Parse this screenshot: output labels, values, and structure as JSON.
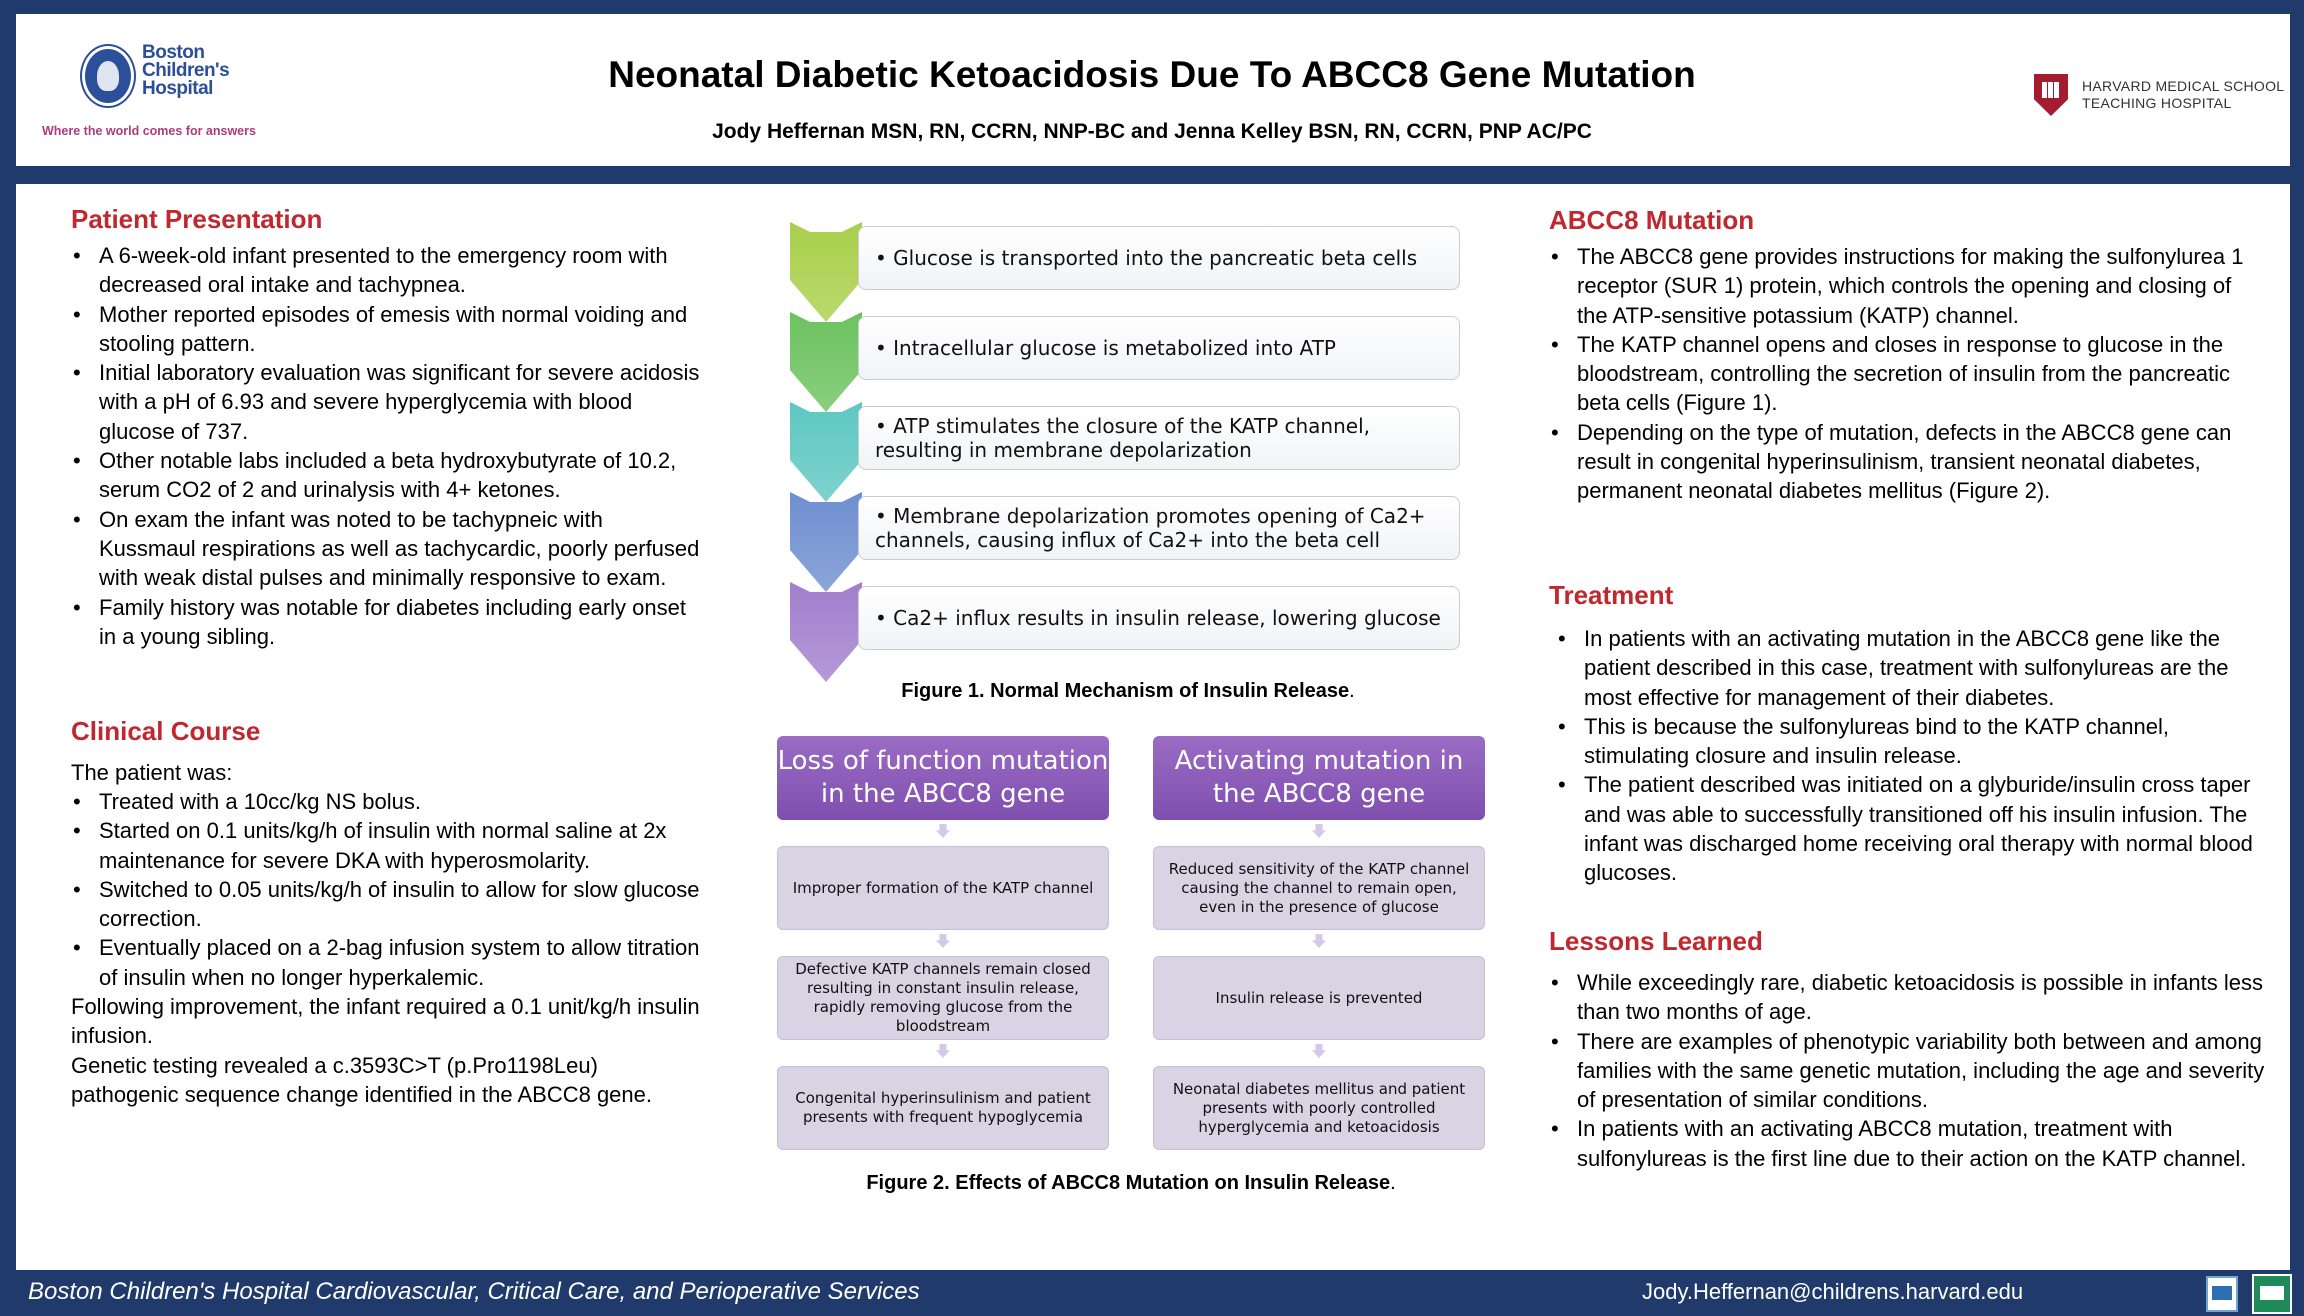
{
  "header": {
    "title": "Neonatal Diabetic Ketoacidosis Due To ABCC8 Gene Mutation",
    "authors": "Jody Heffernan MSN, RN, CCRN, NNP-BC and Jenna Kelley BSN, RN, CCRN, PNP AC/PC",
    "left_logo": {
      "name_line1": "Boston",
      "name_line2": "Children's",
      "name_line3": "Hospital",
      "tagline": "Where the world comes for answers"
    },
    "right_logo": {
      "line1": "HARVARD MEDICAL SCHOOL",
      "line2": "TEACHING HOSPITAL"
    }
  },
  "patient_presentation": {
    "title": "Patient Presentation",
    "items": [
      "A 6-week-old infant presented to the emergency room with decreased oral intake and tachypnea.",
      "Mother reported episodes of emesis with normal voiding and stooling pattern.",
      "Initial laboratory evaluation was significant for severe acidosis with a pH of 6.93 and severe hyperglycemia with blood glucose of 737.",
      "Other notable labs included a beta hydroxybutyrate of 10.2, serum CO2 of 2 and urinalysis with 4+ ketones.",
      "On exam the infant was noted to be tachypneic with Kussmaul respirations as well as tachycardic, poorly perfused with weak distal pulses and minimally responsive to exam.",
      "Family history was notable for diabetes including early onset in a young sibling."
    ]
  },
  "clinical_course": {
    "title": "Clinical Course",
    "intro": "The patient was:",
    "items": [
      "Treated with a 10cc/kg NS bolus.",
      "Started on 0.1 units/kg/h of insulin with normal saline at 2x maintenance for severe DKA with hyperosmolarity.",
      "Switched to 0.05 units/kg/h of insulin to allow for slow glucose correction.",
      "Eventually placed on a 2-bag infusion system to allow titration of insulin when no longer hyperkalemic."
    ],
    "after1": "Following improvement, the infant required a 0.1 unit/kg/h insulin infusion.",
    "after2": "Genetic testing revealed a c.3593C>T (p.Pro1198Leu) pathogenic sequence change identified in the ABCC8 gene."
  },
  "figure1": {
    "steps": [
      {
        "text": "• Glucose is transported into the pancreatic beta cells",
        "color": "#a9cf4a"
      },
      {
        "text": "• Intracellular glucose is metabolized into ATP",
        "color": "#6cc25f"
      },
      {
        "text": "• ATP stimulates the closure of the KATP channel, resulting in membrane depolarization",
        "color": "#5ec7c2"
      },
      {
        "text": "• Membrane depolarization promotes opening of Ca2+ channels, causing influx of Ca2+ into the beta cell",
        "color": "#6f8fd0"
      },
      {
        "text": "• Ca2+ influx results in insulin release, lowering glucose",
        "color": "#a27fcd"
      }
    ],
    "caption": "Figure 1. Normal Mechanism of Insulin Release",
    "caption_end": "."
  },
  "figure2": {
    "left": {
      "head": "Loss of function mutation in the ABCC8 gene",
      "boxes": [
        "Improper formation of the KATP channel",
        "Defective KATP channels remain closed resulting in constant insulin release, rapidly removing glucose from the bloodstream",
        "Congenital hyperinsulinism and patient presents with frequent hypoglycemia"
      ]
    },
    "right": {
      "head": "Activating mutation in the ABCC8 gene",
      "boxes": [
        "Reduced sensitivity of the KATP channel causing the channel  to remain open, even in the presence of glucose",
        "Insulin release is prevented",
        "Neonatal diabetes mellitus and patient presents with poorly controlled hyperglycemia and ketoacidosis"
      ]
    },
    "caption": "Figure 2. Effects of ABCC8 Mutation on Insulin Release",
    "caption_end": "."
  },
  "abcc8_mutation": {
    "title": "ABCC8 Mutation",
    "items": [
      "The ABCC8 gene provides instructions for making the sulfonylurea 1 receptor (SUR 1) protein, which controls the opening and closing of the ATP-sensitive potassium (KATP) channel.",
      "The KATP channel opens and closes in response to glucose in the bloodstream, controlling the secretion of insulin from the pancreatic beta cells (Figure 1).",
      "Depending on the type of mutation, defects in the ABCC8 gene can result in congenital hyperinsulinism, transient neonatal diabetes, permanent neonatal diabetes mellitus (Figure 2)."
    ]
  },
  "treatment": {
    "title": "Treatment",
    "items": [
      "In patients with an activating mutation in the ABCC8 gene like the patient described in this case, treatment with sulfonylureas are the most effective for management of their diabetes.",
      "This is because the sulfonylureas bind to the KATP channel, stimulating closure and insulin release.",
      "The patient described was initiated on a glyburide/insulin cross taper and was able to successfully transitioned off his insulin infusion. The infant was discharged home receiving oral therapy with normal blood glucoses."
    ]
  },
  "lessons": {
    "title": "Lessons Learned",
    "items": [
      "While exceedingly rare, diabetic ketoacidosis is possible in infants less than two months of age.",
      "There are examples of phenotypic variability both between and among families with the same genetic mutation, including the age and severity of presentation of similar conditions.",
      "In patients with an activating ABCC8 mutation, treatment with sulfonylureas is the first line due to their action on the KATP channel."
    ]
  },
  "footer": {
    "left": "Boston Children's Hospital Cardiovascular, Critical Care, and Perioperative Services",
    "right": "Jody.Heffernan@childrens.harvard.edu"
  }
}
